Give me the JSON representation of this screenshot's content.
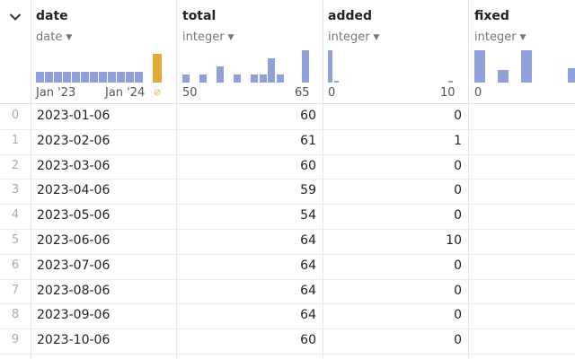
{
  "columns": [
    {
      "name": "date",
      "type": "date",
      "axis_min": "Jan '23",
      "axis_max": "Jan '24",
      "null_icon": "null-icon",
      "hist": [
        0.32,
        0.32,
        0.32,
        0.32,
        0.32,
        0.32,
        0.32,
        0.32,
        0.32,
        0.32,
        0.32,
        0.32
      ],
      "null_bar": 1.0
    },
    {
      "name": "total",
      "type": "integer",
      "axis_min": "50",
      "axis_max": "65",
      "hist": [
        0.25,
        0,
        0.25,
        0,
        0.5,
        0,
        0.25,
        0,
        0.25,
        0.25,
        0.75,
        0.25,
        0,
        0,
        1.0
      ]
    },
    {
      "name": "added",
      "type": "integer",
      "axis_min": "0",
      "axis_max": "10",
      "hist": [
        1.0,
        0,
        0.06,
        0,
        0,
        0,
        0,
        0,
        0,
        0,
        0,
        0,
        0,
        0,
        0,
        0,
        0,
        0,
        0,
        0,
        0,
        0,
        0,
        0,
        0,
        0,
        0,
        0,
        0,
        0,
        0,
        0,
        0,
        0,
        0,
        0,
        0.06
      ]
    },
    {
      "name": "fixed",
      "type": "integer",
      "axis_min": "0",
      "axis_max": "",
      "hist": [
        1.0,
        0,
        0.4,
        0,
        1.0,
        0,
        0,
        0,
        0.45
      ]
    }
  ],
  "rows": [
    {
      "index": "0",
      "date": "2023-01-06",
      "total": "60",
      "added": "0",
      "fixed": ""
    },
    {
      "index": "1",
      "date": "2023-02-06",
      "total": "61",
      "added": "1",
      "fixed": ""
    },
    {
      "index": "2",
      "date": "2023-03-06",
      "total": "60",
      "added": "0",
      "fixed": ""
    },
    {
      "index": "3",
      "date": "2023-04-06",
      "total": "59",
      "added": "0",
      "fixed": ""
    },
    {
      "index": "4",
      "date": "2023-05-06",
      "total": "54",
      "added": "0",
      "fixed": ""
    },
    {
      "index": "5",
      "date": "2023-06-06",
      "total": "64",
      "added": "10",
      "fixed": ""
    },
    {
      "index": "6",
      "date": "2023-07-06",
      "total": "64",
      "added": "0",
      "fixed": ""
    },
    {
      "index": "7",
      "date": "2023-08-06",
      "total": "64",
      "added": "0",
      "fixed": ""
    },
    {
      "index": "8",
      "date": "2023-09-06",
      "total": "64",
      "added": "0",
      "fixed": ""
    },
    {
      "index": "9",
      "date": "2023-10-06",
      "total": "60",
      "added": "0",
      "fixed": ""
    }
  ],
  "colors": {
    "bar": "#8fa0d8",
    "null_bar": "#e0a938",
    "grid": "#e6e6e6"
  }
}
